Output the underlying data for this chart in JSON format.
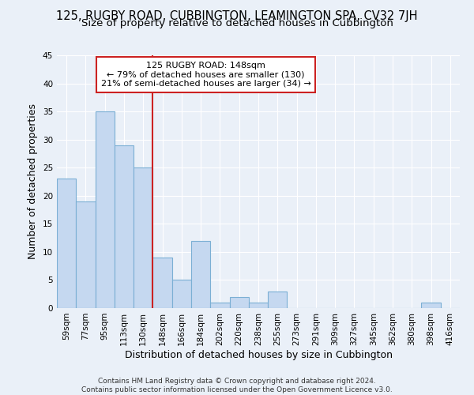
{
  "title": "125, RUGBY ROAD, CUBBINGTON, LEAMINGTON SPA, CV32 7JH",
  "subtitle": "Size of property relative to detached houses in Cubbington",
  "xlabel": "Distribution of detached houses by size in Cubbington",
  "ylabel": "Number of detached properties",
  "categories": [
    "59sqm",
    "77sqm",
    "95sqm",
    "113sqm",
    "130sqm",
    "148sqm",
    "166sqm",
    "184sqm",
    "202sqm",
    "220sqm",
    "238sqm",
    "255sqm",
    "273sqm",
    "291sqm",
    "309sqm",
    "327sqm",
    "345sqm",
    "362sqm",
    "380sqm",
    "398sqm",
    "416sqm"
  ],
  "values": [
    23,
    19,
    35,
    29,
    25,
    9,
    5,
    12,
    1,
    2,
    1,
    3,
    0,
    0,
    0,
    0,
    0,
    0,
    0,
    1,
    0
  ],
  "bar_color": "#c5d8f0",
  "bar_edge_color": "#7bafd4",
  "highlight_index": 5,
  "highlight_line_color": "#cc2222",
  "annotation_line1": "125 RUGBY ROAD: 148sqm",
  "annotation_line2": "← 79% of detached houses are smaller (130)",
  "annotation_line3": "21% of semi-detached houses are larger (34) →",
  "annotation_box_color": "#ffffff",
  "annotation_box_edge_color": "#cc2222",
  "ylim": [
    0,
    45
  ],
  "yticks": [
    0,
    5,
    10,
    15,
    20,
    25,
    30,
    35,
    40,
    45
  ],
  "footnote": "Contains HM Land Registry data © Crown copyright and database right 2024.\nContains public sector information licensed under the Open Government Licence v3.0.",
  "bg_color": "#eaf0f8",
  "grid_color": "#ffffff",
  "title_fontsize": 10.5,
  "subtitle_fontsize": 9.5,
  "axis_label_fontsize": 9,
  "tick_fontsize": 7.5,
  "annotation_fontsize": 8,
  "footnote_fontsize": 6.5
}
